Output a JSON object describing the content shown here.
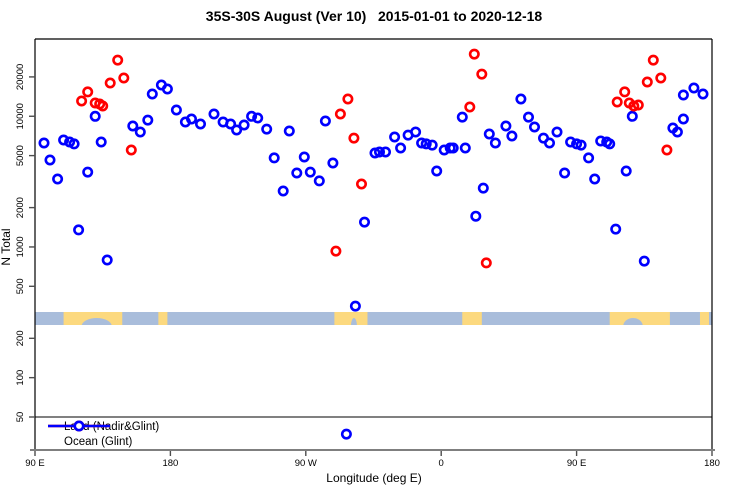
{
  "chart": {
    "title": "35S-30S August (Ver 10)   2015-01-01 to 2020-12-18",
    "xlabel": "Longitude (deg E)",
    "ylabel": "N Total",
    "legend": [
      {
        "label": "Land (Nadir&Glint)",
        "color": "#ff0000"
      },
      {
        "label": "Ocean (Glint)",
        "color": "#0000ff"
      }
    ]
  },
  "chart_data": {
    "type": "scatter",
    "title": "35S-30S August (Ver 10)   2015-01-01 to 2020-12-18",
    "xlabel": "Longitude (deg E)",
    "ylabel": "N Total",
    "x_axis": {
      "note": "longitude plotted continuously eastward from 90E (deg 90) to 180 (deg 540)",
      "range_deg": [
        90,
        540
      ],
      "ticks": [
        {
          "deg": 90,
          "label": "90 E"
        },
        {
          "deg": 180,
          "label": "180"
        },
        {
          "deg": 270,
          "label": "90 W"
        },
        {
          "deg": 360,
          "label": "0"
        },
        {
          "deg": 450,
          "label": "90 E"
        },
        {
          "deg": 540,
          "label": "180"
        }
      ]
    },
    "y_axis": {
      "scale": "log",
      "range": [
        50,
        32000
      ],
      "ticks": [
        "50",
        "100",
        "200",
        "500",
        "1000",
        "2000",
        "5000",
        "10000",
        "20000"
      ]
    },
    "series": [
      {
        "name": "Land (Nadir&Glint)",
        "color": "#ff0000",
        "points": [
          [
            121,
            13090
          ],
          [
            125,
            15350
          ],
          [
            130,
            12620
          ],
          [
            133,
            12410
          ],
          [
            135,
            11970
          ],
          [
            140,
            17950
          ],
          [
            145,
            26900
          ],
          [
            149,
            19630
          ],
          [
            154,
            5520
          ],
          [
            290,
            930
          ],
          [
            293,
            10400
          ],
          [
            298,
            13550
          ],
          [
            302,
            6800
          ],
          [
            307,
            3030
          ],
          [
            379,
            11780
          ],
          [
            382,
            29900
          ],
          [
            387,
            21000
          ],
          [
            390,
            755
          ],
          [
            477,
            12850
          ],
          [
            482,
            15350
          ],
          [
            485,
            12620
          ],
          [
            488,
            11970
          ],
          [
            491,
            12190
          ],
          [
            497,
            18280
          ],
          [
            501,
            26900
          ],
          [
            506,
            19630
          ],
          [
            510,
            5520
          ]
        ]
      },
      {
        "name": "Ocean (Glint)",
        "color": "#0000ff",
        "points": [
          [
            96,
            6240
          ],
          [
            100,
            4630
          ],
          [
            105,
            3310
          ],
          [
            109,
            6580
          ],
          [
            113,
            6350
          ],
          [
            116,
            6140
          ],
          [
            119,
            1350
          ],
          [
            125,
            3740
          ],
          [
            130,
            10000
          ],
          [
            134,
            6350
          ],
          [
            138,
            795
          ],
          [
            155,
            8420
          ],
          [
            160,
            7580
          ],
          [
            165,
            9350
          ],
          [
            168,
            14800
          ],
          [
            174,
            17350
          ],
          [
            178,
            16150
          ],
          [
            184,
            11170
          ],
          [
            190,
            9040
          ],
          [
            194,
            9530
          ],
          [
            200,
            8730
          ],
          [
            209,
            10400
          ],
          [
            215,
            9040
          ],
          [
            220,
            8730
          ],
          [
            224,
            7850
          ],
          [
            229,
            8570
          ],
          [
            234,
            10000
          ],
          [
            238,
            9700
          ],
          [
            244,
            7980
          ],
          [
            249,
            4800
          ],
          [
            255,
            2680
          ],
          [
            259,
            7710
          ],
          [
            264,
            3680
          ],
          [
            269,
            4880
          ],
          [
            273,
            3740
          ],
          [
            279,
            3200
          ],
          [
            283,
            9200
          ],
          [
            288,
            4390
          ],
          [
            297,
            37
          ],
          [
            303,
            353
          ],
          [
            309,
            1550
          ],
          [
            316,
            5230
          ],
          [
            319,
            5330
          ],
          [
            323,
            5330
          ],
          [
            329,
            6940
          ],
          [
            333,
            5720
          ],
          [
            338,
            7180
          ],
          [
            343,
            7580
          ],
          [
            347,
            6240
          ],
          [
            350,
            6140
          ],
          [
            354,
            6020
          ],
          [
            357,
            3810
          ],
          [
            362,
            5520
          ],
          [
            366,
            5720
          ],
          [
            368,
            5720
          ],
          [
            374,
            9860
          ],
          [
            376,
            5720
          ],
          [
            383,
            1720
          ],
          [
            388,
            2820
          ],
          [
            392,
            7310
          ],
          [
            396,
            6240
          ],
          [
            403,
            8420
          ],
          [
            407,
            7060
          ],
          [
            413,
            13550
          ],
          [
            418,
            9860
          ],
          [
            422,
            8280
          ],
          [
            428,
            6800
          ],
          [
            432,
            6240
          ],
          [
            437,
            7580
          ],
          [
            442,
            3680
          ],
          [
            446,
            6350
          ],
          [
            450,
            6140
          ],
          [
            453,
            6020
          ],
          [
            458,
            4800
          ],
          [
            462,
            3310
          ],
          [
            466,
            6470
          ],
          [
            470,
            6350
          ],
          [
            472,
            6140
          ],
          [
            476,
            1370
          ],
          [
            483,
            3810
          ],
          [
            487,
            10000
          ],
          [
            495,
            780
          ],
          [
            514,
            8130
          ],
          [
            517,
            7580
          ],
          [
            521,
            9530
          ],
          [
            521,
            14550
          ],
          [
            528,
            16440
          ],
          [
            534,
            14790
          ]
        ]
      }
    ],
    "land_ocean_strip": {
      "description": "horizontal map strip showing land/ocean along the 35S-30S band",
      "ocean_color": "#a9bddb",
      "land_color": "#fcd97f",
      "land_segments_deg": [
        [
          109,
          148
        ],
        [
          172,
          178
        ],
        [
          289,
          311
        ],
        [
          374,
          387
        ],
        [
          472,
          512
        ],
        [
          532,
          538
        ]
      ],
      "ocean_inlets_deg": [
        [
          121,
          141
        ],
        [
          300,
          304
        ],
        [
          481,
          494
        ]
      ]
    }
  }
}
